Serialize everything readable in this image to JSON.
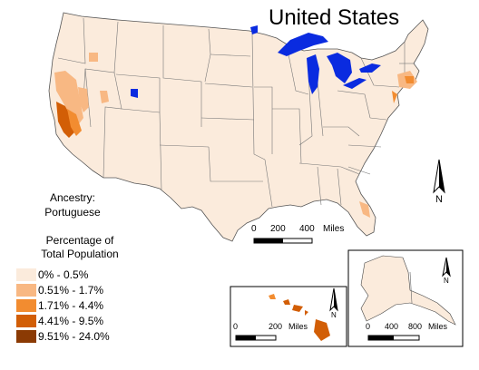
{
  "map": {
    "title": "United States",
    "subject_lines": [
      "Ancestry:",
      "Portuguese"
    ],
    "legend": {
      "title_lines": [
        "Percentage of",
        "Total Population"
      ],
      "classes": [
        {
          "label": "0% - 0.5%",
          "color": "#FBEBDC"
        },
        {
          "label": "0.51% - 1.7%",
          "color": "#F8B883"
        },
        {
          "label": "1.71% - 4.4%",
          "color": "#F28C30"
        },
        {
          "label": "4.41% - 9.5%",
          "color": "#D25E06"
        },
        {
          "label": "9.51% - 24.0%",
          "color": "#8B3A04"
        }
      ]
    },
    "north_label": "N",
    "scales": {
      "main": {
        "ticks": [
          "0",
          "200",
          "400"
        ],
        "unit": "Miles"
      },
      "hawaii": {
        "ticks": [
          "0",
          "200"
        ],
        "unit": "Miles"
      },
      "alaska": {
        "ticks": [
          "0",
          "400",
          "800"
        ],
        "unit": "Miles"
      }
    },
    "water_color": "#0A2BE0",
    "land_color": "#FBEBDC"
  }
}
